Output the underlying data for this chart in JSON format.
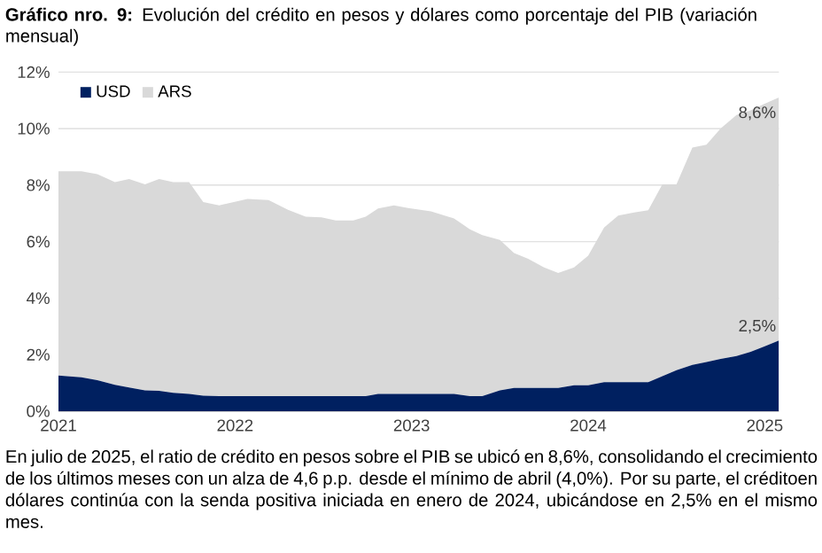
{
  "chart_data": {
    "type": "area",
    "stacked": true,
    "title": "**Gráfico nro. 9:** Evolución del crédito en pesos y dólares como porcentaje del PIB (variación mensual)",
    "x": [
      2021.0,
      2021.13,
      2021.22,
      2021.32,
      2021.4,
      2021.49,
      2021.57,
      2021.65,
      2021.74,
      2021.82,
      2021.91,
      2022.07,
      2022.19,
      2022.3,
      2022.4,
      2022.49,
      2022.57,
      2022.67,
      2022.74,
      2022.81,
      2022.9,
      2022.98,
      2023.11,
      2023.24,
      2023.33,
      2023.4,
      2023.5,
      2023.58,
      2023.66,
      2023.75,
      2023.83,
      2023.92,
      2024.0,
      2024.09,
      2024.17,
      2024.26,
      2024.34,
      2024.42,
      2024.5,
      2024.59,
      2024.67,
      2024.75,
      2024.84,
      2024.92,
      2025.0,
      2025.08
    ],
    "series": [
      {
        "name": "USD",
        "color": "#002060",
        "values": [
          1.26,
          1.2,
          1.1,
          0.93,
          0.84,
          0.74,
          0.72,
          0.65,
          0.61,
          0.55,
          0.53,
          0.53,
          0.53,
          0.53,
          0.53,
          0.53,
          0.53,
          0.53,
          0.53,
          0.61,
          0.61,
          0.61,
          0.61,
          0.61,
          0.53,
          0.53,
          0.74,
          0.82,
          0.82,
          0.82,
          0.82,
          0.92,
          0.92,
          1.03,
          1.03,
          1.03,
          1.03,
          1.24,
          1.45,
          1.64,
          1.74,
          1.85,
          1.95,
          2.1,
          2.3,
          2.5
        ],
        "value_labels": [
          null,
          null,
          null,
          null,
          null,
          null,
          null,
          null,
          null,
          null,
          null,
          null,
          null,
          null,
          null,
          null,
          null,
          null,
          null,
          null,
          null,
          null,
          null,
          null,
          null,
          null,
          null,
          null,
          null,
          null,
          null,
          null,
          null,
          null,
          null,
          null,
          null,
          null,
          null,
          null,
          null,
          null,
          null,
          null,
          null,
          "2,5%"
        ]
      },
      {
        "name": "ARS",
        "color": "#d9d9d9",
        "values": [
          7.23,
          7.29,
          7.29,
          7.18,
          7.38,
          7.29,
          7.5,
          7.46,
          7.5,
          6.85,
          6.75,
          6.98,
          6.94,
          6.6,
          6.35,
          6.33,
          6.22,
          6.22,
          6.35,
          6.56,
          6.67,
          6.58,
          6.46,
          6.21,
          5.91,
          5.7,
          5.32,
          4.78,
          4.57,
          4.27,
          4.07,
          4.17,
          4.58,
          5.47,
          5.89,
          6.0,
          6.08,
          6.79,
          6.58,
          7.69,
          7.69,
          8.15,
          8.53,
          8.55,
          8.58,
          8.6
        ],
        "value_labels": [
          null,
          null,
          null,
          null,
          null,
          null,
          null,
          null,
          null,
          null,
          null,
          null,
          null,
          null,
          null,
          null,
          null,
          null,
          null,
          null,
          null,
          null,
          null,
          null,
          null,
          null,
          null,
          null,
          null,
          null,
          null,
          null,
          null,
          null,
          null,
          null,
          null,
          null,
          null,
          null,
          null,
          null,
          null,
          null,
          null,
          "8,6%"
        ]
      }
    ],
    "xlim": [
      2021,
      2025.08
    ],
    "xticks": [
      2021,
      2022,
      2023,
      2024,
      2025
    ],
    "ylim": [
      0,
      12
    ],
    "yticks": [
      {
        "value": 0,
        "label": "0%"
      },
      {
        "value": 2,
        "label": "2%"
      },
      {
        "value": 4,
        "label": "4%"
      },
      {
        "value": 6,
        "label": "6%"
      },
      {
        "value": 8,
        "label": "8%"
      },
      {
        "value": 10,
        "label": "10%"
      },
      {
        "value": 12,
        "label": "12%"
      }
    ],
    "grid": "y",
    "legend": "top left",
    "annotations": [
      "En julio de 2025, el ratio de crédito en pesos sobre el PIB se ubicó en 8,6%, consolidando el crecimiento de los últimos meses con un alza de 4,6 p.p. desde el mínimo de abril (4,0%). Por su parte, el créditoen dólares continúa con la senda positiva iniciada en enero de 2024, ubicándose en 2,5% en el mismo mes."
    ]
  }
}
